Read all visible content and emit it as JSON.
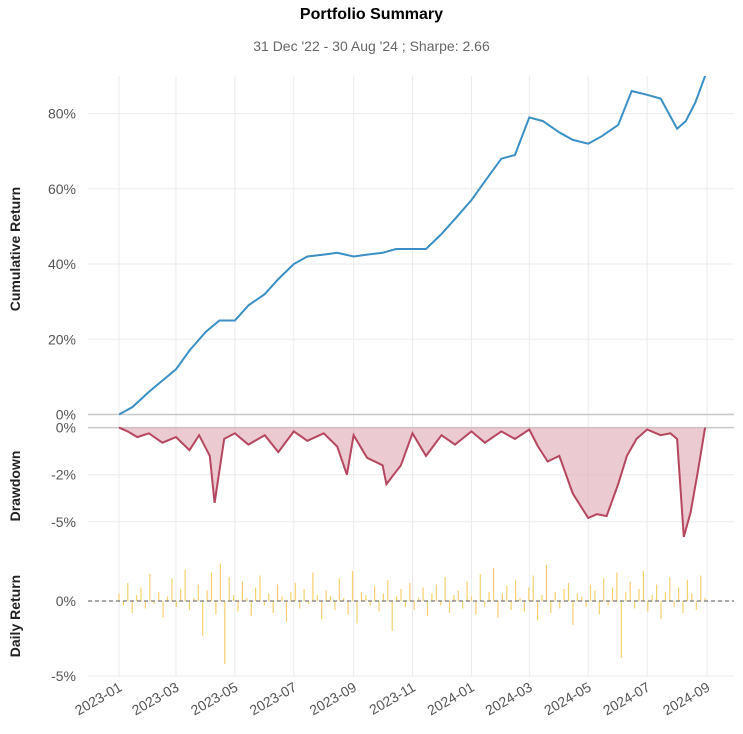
{
  "title": "Portfolio Summary",
  "subtitle": "31 Dec '22 - 30 Aug '24 ;  Sharpe: 2.66",
  "chart_data": [
    {
      "type": "line",
      "name": "cumulative",
      "ylabel": "Cumulative Return",
      "ylim": [
        -2,
        90
      ],
      "yticks": [
        0,
        20,
        40,
        60,
        80
      ],
      "ytick_labels": [
        "0%",
        "20%",
        "40%",
        "60%",
        "80%"
      ],
      "color": "#3a8fc4",
      "grid": true,
      "x": [
        "2023-01-01",
        "2023-01-15",
        "2023-02-01",
        "2023-02-15",
        "2023-03-01",
        "2023-03-15",
        "2023-04-01",
        "2023-04-15",
        "2023-05-01",
        "2023-05-15",
        "2023-06-01",
        "2023-06-15",
        "2023-07-01",
        "2023-07-15",
        "2023-08-01",
        "2023-08-15",
        "2023-09-01",
        "2023-09-15",
        "2023-10-01",
        "2023-10-15",
        "2023-11-01",
        "2023-11-15",
        "2023-12-01",
        "2023-12-15",
        "2024-01-01",
        "2024-01-15",
        "2024-02-01",
        "2024-02-15",
        "2024-03-01",
        "2024-03-15",
        "2024-04-01",
        "2024-04-15",
        "2024-05-01",
        "2024-05-15",
        "2024-06-01",
        "2024-06-15",
        "2024-07-01",
        "2024-07-15",
        "2024-08-01",
        "2024-08-10",
        "2024-08-20",
        "2024-08-30"
      ],
      "y": [
        0,
        2,
        6,
        9,
        12,
        17,
        22,
        25,
        25,
        29,
        32,
        36,
        40,
        42,
        42.5,
        43,
        42,
        42.5,
        43,
        44,
        44,
        44,
        48,
        52,
        57,
        62,
        68,
        69,
        79,
        78,
        75,
        73,
        72,
        74,
        77,
        86,
        85,
        84,
        76,
        78,
        83,
        90
      ]
    },
    {
      "type": "area",
      "name": "drawdown",
      "ylabel": "Drawdown",
      "ylim": [
        -6.5,
        0.3
      ],
      "yticks": [
        0,
        -2.5,
        -5
      ],
      "ytick_labels": [
        "0%",
        "-2%",
        "-5%"
      ],
      "color": "#b4475f",
      "fill": "#dfa6b4",
      "x": [
        "2023-01-01",
        "2023-01-10",
        "2023-01-20",
        "2023-02-01",
        "2023-02-15",
        "2023-03-01",
        "2023-03-15",
        "2023-03-25",
        "2023-04-05",
        "2023-04-10",
        "2023-04-20",
        "2023-05-01",
        "2023-05-15",
        "2023-06-01",
        "2023-06-15",
        "2023-07-01",
        "2023-07-15",
        "2023-08-01",
        "2023-08-15",
        "2023-08-25",
        "2023-09-01",
        "2023-09-15",
        "2023-10-01",
        "2023-10-05",
        "2023-10-20",
        "2023-11-01",
        "2023-11-15",
        "2023-12-01",
        "2023-12-15",
        "2024-01-01",
        "2024-01-15",
        "2024-02-01",
        "2024-02-15",
        "2024-03-01",
        "2024-03-10",
        "2024-03-20",
        "2024-04-01",
        "2024-04-15",
        "2024-05-01",
        "2024-05-10",
        "2024-05-20",
        "2024-06-01",
        "2024-06-10",
        "2024-06-20",
        "2024-07-01",
        "2024-07-15",
        "2024-07-25",
        "2024-08-01",
        "2024-08-08",
        "2024-08-15",
        "2024-08-22",
        "2024-08-30"
      ],
      "y": [
        0,
        -0.2,
        -0.5,
        -0.3,
        -0.8,
        -0.5,
        -1.2,
        -0.4,
        -1.5,
        -4.0,
        -0.6,
        -0.3,
        -0.9,
        -0.4,
        -1.3,
        -0.2,
        -0.7,
        -0.3,
        -1.0,
        -2.5,
        -0.4,
        -1.6,
        -2.0,
        -3.0,
        -2.0,
        -0.3,
        -1.5,
        -0.4,
        -0.9,
        -0.2,
        -0.8,
        -0.2,
        -0.6,
        -0.1,
        -1.0,
        -1.8,
        -1.5,
        -3.5,
        -4.8,
        -4.6,
        -4.7,
        -3.0,
        -1.5,
        -0.6,
        -0.1,
        -0.4,
        -0.3,
        -0.6,
        -5.8,
        -4.5,
        -2.5,
        0
      ]
    },
    {
      "type": "bar",
      "name": "daily",
      "ylabel": "Daily Return",
      "ylim": [
        -5,
        3
      ],
      "yticks": [
        0,
        -5
      ],
      "ytick_labels": [
        "0%",
        "-5%"
      ],
      "color": "#f5c64a",
      "x_start": "2023-01-01",
      "x_end": "2024-08-30",
      "values": [
        0.5,
        -0.3,
        1.2,
        -0.8,
        0.4,
        0.9,
        -0.5,
        1.8,
        -0.2,
        0.6,
        -1.1,
        0.3,
        1.5,
        -0.4,
        0.8,
        2.1,
        -0.6,
        0.2,
        1.1,
        -2.3,
        0.7,
        1.9,
        -0.9,
        2.5,
        -4.2,
        1.6,
        0.4,
        -0.7,
        1.3,
        0.2,
        -1.0,
        0.9,
        1.7,
        -0.3,
        0.5,
        -0.8,
        1.1,
        0.3,
        -1.4,
        0.6,
        1.2,
        -0.5,
        0.8,
        -0.2,
        1.9,
        0.4,
        -1.2,
        0.7,
        0.3,
        -0.6,
        1.5,
        0.2,
        -0.9,
        2.0,
        -1.5,
        0.6,
        0.4,
        -0.3,
        1.0,
        -0.7,
        0.5,
        1.4,
        -2.0,
        0.3,
        0.8,
        -0.4,
        1.2,
        -0.6,
        0.2,
        0.9,
        -1.0,
        0.5,
        1.1,
        -0.3,
        1.6,
        -0.8,
        0.4,
        0.7,
        -0.5,
        1.3,
        0.3,
        -0.9,
        1.8,
        -0.4,
        0.6,
        2.2,
        -1.1,
        0.5,
        1.0,
        -0.6,
        1.4,
        0.2,
        -0.7,
        0.9,
        1.7,
        -1.3,
        0.4,
        2.4,
        -0.8,
        0.6,
        -0.5,
        0.8,
        1.2,
        -1.6,
        0.5,
        0.3,
        -0.4,
        1.1,
        0.7,
        -0.9,
        1.5,
        -0.3,
        0.9,
        1.9,
        -3.8,
        0.6,
        1.3,
        -0.5,
        0.8,
        2.0,
        -0.7,
        0.4,
        1.1,
        -1.2,
        0.6,
        1.6,
        -0.4,
        0.9,
        -0.8,
        1.4,
        0.5,
        -0.6,
        1.7,
        0.2
      ]
    }
  ],
  "x_axis": {
    "tick_labels": [
      "2023-01",
      "2023-03",
      "2023-05",
      "2023-07",
      "2023-09",
      "2023-11",
      "2024-01",
      "2024-03",
      "2024-05",
      "2024-07",
      "2024-09"
    ],
    "tick_dates": [
      "2023-01-01",
      "2023-03-01",
      "2023-05-01",
      "2023-07-01",
      "2023-09-01",
      "2023-11-01",
      "2024-01-01",
      "2024-03-01",
      "2024-05-01",
      "2024-07-01",
      "2024-09-01"
    ]
  }
}
